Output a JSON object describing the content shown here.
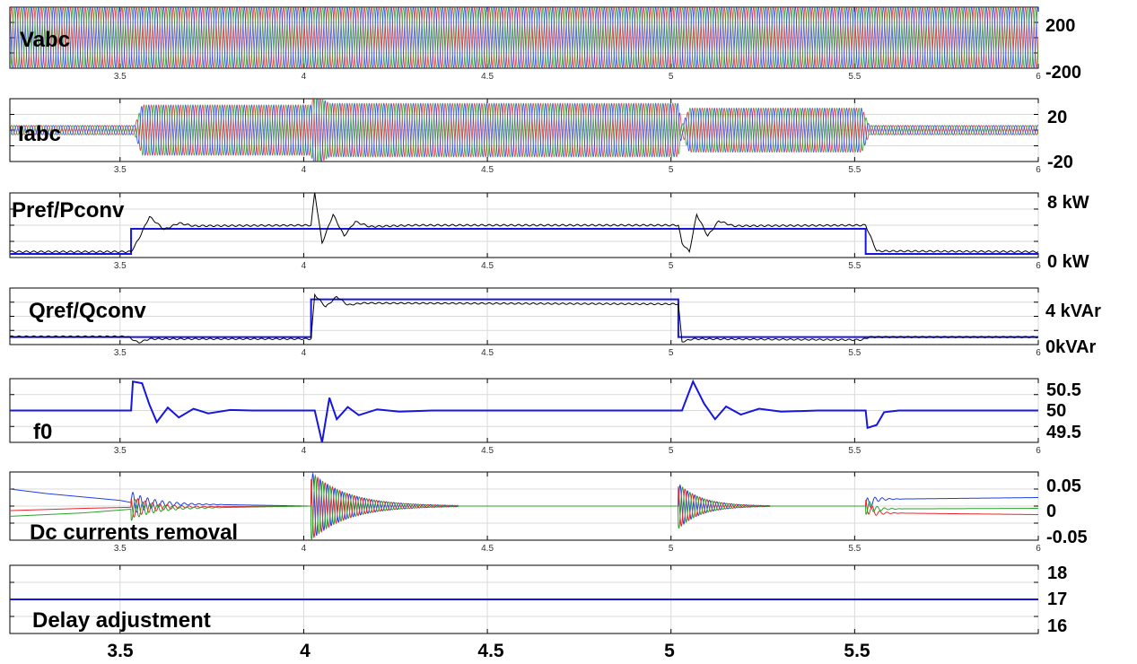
{
  "colors": {
    "phase_a": "#e8262a",
    "phase_b": "#2ca02c",
    "phase_c": "#1f3fe0",
    "reference": "#1616e0",
    "measured": "#000000",
    "grid": "#d9d9d9"
  },
  "x_tick_labels": [
    "3.5",
    "4",
    "4.5",
    "5",
    "5.5",
    "6"
  ],
  "bottom_axis_labels": [
    "3.5",
    "4",
    "4.5",
    "5",
    "5.5"
  ],
  "chart_data": [
    {
      "id": "vabc",
      "type": "line",
      "title": "Vabc",
      "x_range": [
        3.2,
        6.0
      ],
      "ylim": [
        -200,
        200
      ],
      "y_tick_labels": [
        "200",
        "-200"
      ],
      "series": [
        {
          "kind": "three-phase",
          "amplitude": [
            [
              3.2,
              200
            ],
            [
              6.0,
              200
            ]
          ]
        }
      ]
    },
    {
      "id": "iabc",
      "type": "line",
      "title": "Iabc",
      "x_range": [
        3.2,
        6.0
      ],
      "ylim": [
        -20,
        20
      ],
      "y_tick_labels": [
        "20",
        "-20"
      ],
      "series": [
        {
          "kind": "three-phase",
          "amplitude": [
            [
              3.2,
              3
            ],
            [
              3.54,
              3
            ],
            [
              3.56,
              16
            ],
            [
              4.02,
              16
            ],
            [
              4.03,
              26
            ],
            [
              4.05,
              20
            ],
            [
              4.07,
              17
            ],
            [
              5.02,
              17
            ],
            [
              5.03,
              3
            ],
            [
              5.05,
              14
            ],
            [
              5.52,
              14
            ],
            [
              5.54,
              3
            ],
            [
              6.0,
              3
            ]
          ]
        }
      ]
    },
    {
      "id": "power",
      "type": "line",
      "title": "Pref/Pconv",
      "x_range": [
        3.2,
        6.0
      ],
      "ylim": [
        -0.5,
        8.5
      ],
      "y_tick_labels": [
        "8 kW",
        "0 kW"
      ],
      "series": [
        {
          "kind": "reference",
          "points": [
            [
              3.2,
              0
            ],
            [
              3.53,
              0
            ],
            [
              3.53,
              3.5
            ],
            [
              5.53,
              3.5
            ],
            [
              5.53,
              0
            ],
            [
              6.0,
              0
            ]
          ]
        },
        {
          "kind": "measured",
          "points": [
            [
              3.2,
              0.3
            ],
            [
              3.53,
              0.3
            ],
            [
              3.55,
              2
            ],
            [
              3.58,
              5.2
            ],
            [
              3.62,
              3.4
            ],
            [
              3.66,
              4.3
            ],
            [
              3.7,
              3.9
            ],
            [
              4.02,
              4.0
            ],
            [
              4.03,
              8.6
            ],
            [
              4.05,
              1.5
            ],
            [
              4.08,
              5.5
            ],
            [
              4.11,
              2.5
            ],
            [
              4.14,
              4.5
            ],
            [
              4.18,
              3.8
            ],
            [
              4.3,
              4.0
            ],
            [
              5.02,
              4.0
            ],
            [
              5.03,
              1.5
            ],
            [
              5.05,
              0.3
            ],
            [
              5.07,
              5.5
            ],
            [
              5.1,
              2.5
            ],
            [
              5.13,
              4.6
            ],
            [
              5.17,
              3.9
            ],
            [
              5.52,
              4.0
            ],
            [
              5.53,
              4.0
            ],
            [
              5.56,
              0.4
            ],
            [
              6.0,
              0.3
            ]
          ]
        }
      ]
    },
    {
      "id": "reactive",
      "type": "line",
      "title": "Qref/Qconv",
      "x_range": [
        3.2,
        6.0
      ],
      "ylim": [
        -0.8,
        5.2
      ],
      "y_tick_labels": [
        "4 kVAr",
        "0kVAr"
      ],
      "series": [
        {
          "kind": "reference",
          "points": [
            [
              3.2,
              0
            ],
            [
              4.02,
              0
            ],
            [
              4.02,
              4
            ],
            [
              5.02,
              4
            ],
            [
              5.02,
              0
            ],
            [
              6.0,
              0
            ]
          ]
        },
        {
          "kind": "measured",
          "points": [
            [
              3.2,
              0.05
            ],
            [
              3.52,
              0.05
            ],
            [
              3.55,
              -0.6
            ],
            [
              3.58,
              -0.2
            ],
            [
              4.02,
              -0.2
            ],
            [
              4.03,
              4.5
            ],
            [
              4.06,
              3.2
            ],
            [
              4.09,
              4.3
            ],
            [
              4.12,
              3.4
            ],
            [
              4.16,
              3.6
            ],
            [
              5.02,
              3.5
            ],
            [
              5.03,
              -0.5
            ],
            [
              5.06,
              -0.2
            ],
            [
              5.52,
              -0.3
            ],
            [
              5.54,
              0
            ],
            [
              6.0,
              0
            ]
          ]
        }
      ]
    },
    {
      "id": "freq",
      "type": "line",
      "title": "f0",
      "x_range": [
        3.2,
        6.0
      ],
      "ylim": [
        49.45,
        50.55
      ],
      "y_tick_labels": [
        "50.5",
        "50",
        "49.5"
      ],
      "series": [
        {
          "kind": "reference",
          "points": [
            [
              3.2,
              50
            ],
            [
              3.53,
              50
            ],
            [
              3.535,
              50.5
            ],
            [
              3.56,
              50.47
            ],
            [
              3.58,
              50.1
            ],
            [
              3.6,
              49.8
            ],
            [
              3.63,
              50.05
            ],
            [
              3.66,
              49.88
            ],
            [
              3.7,
              50.03
            ],
            [
              3.74,
              49.95
            ],
            [
              3.8,
              50.01
            ],
            [
              3.86,
              50
            ],
            [
              4.03,
              50
            ],
            [
              4.05,
              49.45
            ],
            [
              4.07,
              50.22
            ],
            [
              4.09,
              49.85
            ],
            [
              4.12,
              50.06
            ],
            [
              4.15,
              49.92
            ],
            [
              4.2,
              50.02
            ],
            [
              4.26,
              49.98
            ],
            [
              4.35,
              50
            ],
            [
              5.03,
              50
            ],
            [
              5.06,
              50.5
            ],
            [
              5.09,
              50.12
            ],
            [
              5.12,
              49.85
            ],
            [
              5.15,
              50.07
            ],
            [
              5.19,
              49.93
            ],
            [
              5.24,
              50.03
            ],
            [
              5.3,
              49.98
            ],
            [
              5.4,
              50
            ],
            [
              5.53,
              50
            ],
            [
              5.535,
              49.7
            ],
            [
              5.56,
              49.75
            ],
            [
              5.58,
              49.97
            ],
            [
              5.62,
              50
            ],
            [
              6.0,
              50
            ]
          ]
        }
      ]
    },
    {
      "id": "dc",
      "type": "line",
      "title": "Dc currents removal",
      "x_range": [
        3.2,
        6.0
      ],
      "ylim": [
        -0.06,
        0.06
      ],
      "y_tick_labels": [
        "0.05",
        "0",
        "-0.05"
      ],
      "series": [
        {
          "kind": "phase_c",
          "points": [
            [
              3.2,
              0.03
            ],
            [
              3.3,
              0.022
            ],
            [
              3.4,
              0.016
            ],
            [
              3.5,
              0.01
            ],
            [
              3.54,
              0.005
            ],
            [
              4.02,
              0
            ],
            [
              5.02,
              0
            ],
            [
              5.53,
              0
            ],
            [
              5.56,
              0.012
            ],
            [
              6.0,
              0.015
            ]
          ]
        },
        {
          "kind": "phase_a",
          "points": [
            [
              3.2,
              -0.008
            ],
            [
              3.4,
              -0.004
            ],
            [
              3.54,
              -0.002
            ],
            [
              4.02,
              0
            ],
            [
              5.02,
              0
            ],
            [
              5.53,
              0
            ],
            [
              5.56,
              -0.012
            ],
            [
              6.0,
              -0.015
            ]
          ]
        },
        {
          "kind": "phase_b",
          "points": [
            [
              3.2,
              -0.018
            ],
            [
              3.4,
              -0.012
            ],
            [
              3.54,
              -0.005
            ],
            [
              4.02,
              0
            ],
            [
              5.02,
              0
            ],
            [
              5.53,
              0
            ],
            [
              5.56,
              -0.005
            ],
            [
              6.0,
              -0.004
            ]
          ]
        }
      ],
      "oscillations": [
        [
          3.53,
          0.02,
          0.25
        ],
        [
          4.02,
          0.06,
          0.4
        ],
        [
          5.02,
          0.04,
          0.25
        ],
        [
          5.53,
          0.015,
          0.1
        ]
      ]
    },
    {
      "id": "delay",
      "type": "line",
      "title": "Delay adjustment",
      "x_range": [
        3.2,
        6.0
      ],
      "ylim": [
        16,
        18
      ],
      "y_tick_labels": [
        "18",
        "17",
        "16"
      ],
      "series": [
        {
          "kind": "reference",
          "points": [
            [
              3.2,
              17
            ],
            [
              6.0,
              17
            ]
          ]
        }
      ]
    }
  ]
}
